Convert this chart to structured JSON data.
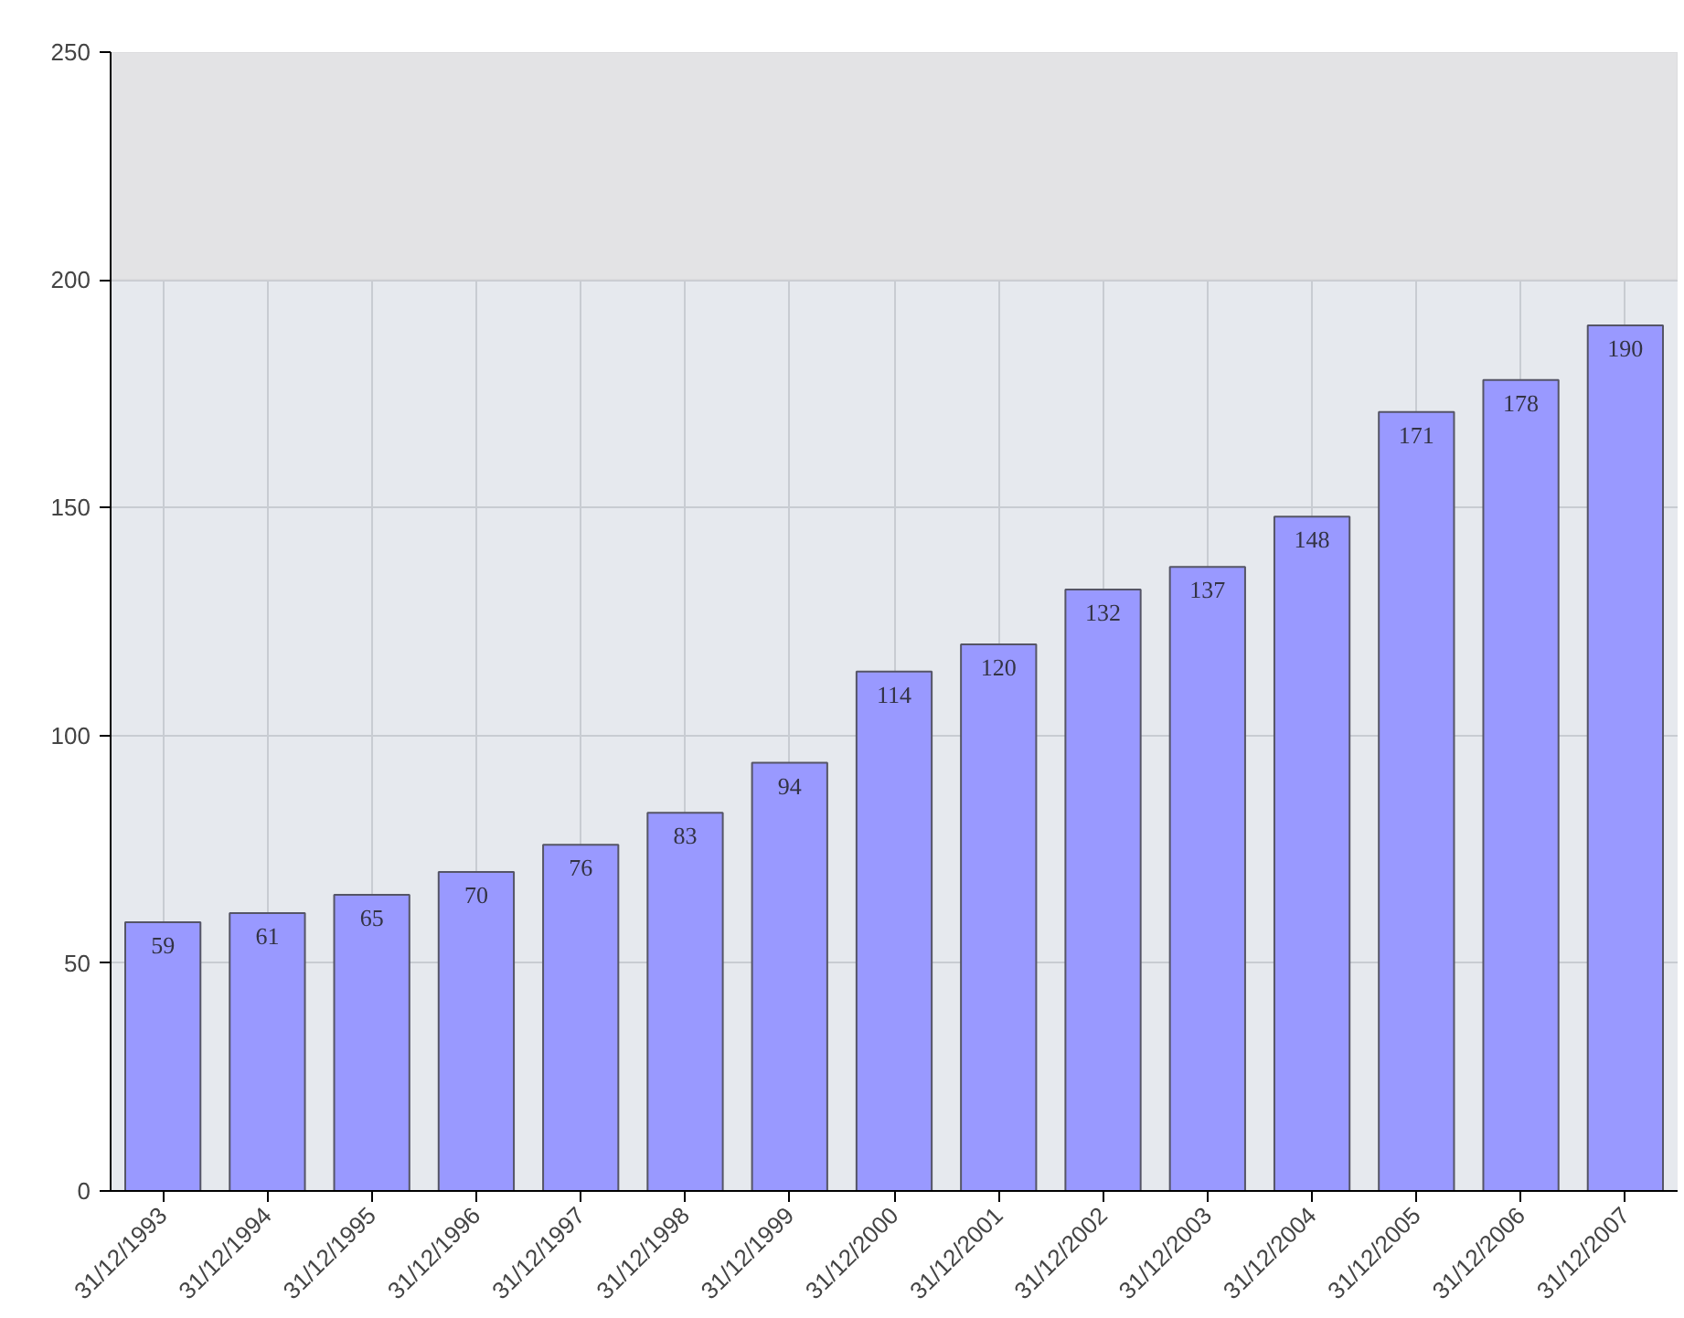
{
  "chart_data": {
    "type": "bar",
    "categories": [
      "31/12/1993",
      "31/12/1994",
      "31/12/1995",
      "31/12/1996",
      "31/12/1997",
      "31/12/1998",
      "31/12/1999",
      "31/12/2000",
      "31/12/2001",
      "31/12/2002",
      "31/12/2003",
      "31/12/2004",
      "31/12/2005",
      "31/12/2006",
      "31/12/2007"
    ],
    "values": [
      59,
      61,
      65,
      70,
      76,
      83,
      94,
      114,
      120,
      132,
      137,
      148,
      171,
      178,
      190
    ],
    "color": "#9999ff",
    "ylim": [
      0,
      250
    ],
    "yticks": [
      0,
      50,
      100,
      150,
      200,
      250
    ],
    "bands": [
      {
        "axis": "y",
        "from": 200,
        "to": 250,
        "color": "#e3e3e5"
      }
    ],
    "grid": true,
    "data_labels": true
  }
}
